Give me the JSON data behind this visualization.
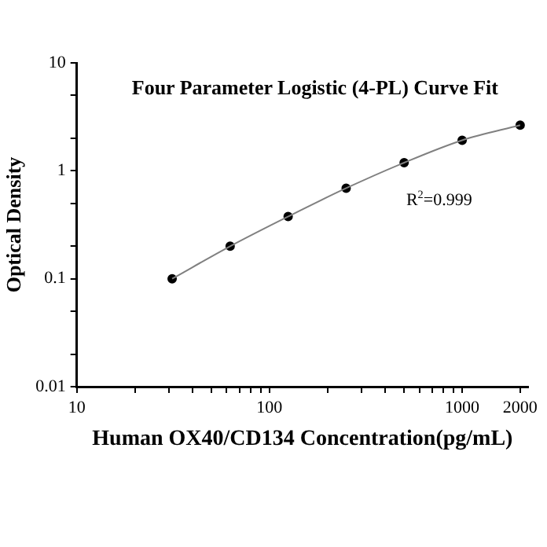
{
  "chart_data": {
    "type": "scatter",
    "title": "Four Parameter Logistic (4-PL) Curve Fit",
    "xlabel": "Human OX40/CD134 Concentration(pg/mL)",
    "ylabel": "Optical Density",
    "log": "xy",
    "grid": false,
    "legend": false,
    "marker": "circle",
    "xlim": [
      10,
      2200
    ],
    "ylim": [
      0.01,
      10
    ],
    "xticks": [
      10,
      {
        "value": 20,
        "label": null
      },
      {
        "value": 30,
        "label": null
      },
      {
        "value": 40,
        "label": null
      },
      {
        "value": 50,
        "label": null
      },
      {
        "value": 60,
        "label": null
      },
      {
        "value": 70,
        "label": null
      },
      {
        "value": 80,
        "label": null
      },
      {
        "value": 90,
        "label": null
      },
      100,
      {
        "value": 200,
        "label": null
      },
      {
        "value": 300,
        "label": null
      },
      {
        "value": 400,
        "label": null
      },
      {
        "value": 500,
        "label": null
      },
      {
        "value": 600,
        "label": null
      },
      {
        "value": 700,
        "label": null
      },
      {
        "value": 800,
        "label": null
      },
      {
        "value": 900,
        "label": null
      },
      1000,
      2000
    ],
    "yticks": [
      0.01,
      {
        "value": 0.02,
        "label": null
      },
      {
        "value": 0.05,
        "label": null
      },
      0.1,
      {
        "value": 0.2,
        "label": null
      },
      {
        "value": 0.5,
        "label": null
      },
      1,
      {
        "value": 2,
        "label": null
      },
      {
        "value": 5,
        "label": null
      },
      10
    ],
    "annotations": [
      "R$^{2}$=0.999"
    ],
    "series": [
      {
        "type": "line",
        "color": "#808080",
        "marker": "none",
        "line_style": "solid",
        "x": [
          31.25,
          62.5,
          125,
          250,
          500,
          1000,
          2000
        ],
        "values": [
          0.1,
          0.2,
          0.377,
          0.69,
          1.19,
          1.92,
          2.65
        ]
      },
      {
        "color": "#000000",
        "x": [
          31.25,
          62.5,
          125,
          250,
          500,
          1000,
          2000
        ],
        "values": [
          0.1,
          0.2,
          0.377,
          0.69,
          1.19,
          1.92,
          2.65
        ]
      }
    ]
  }
}
